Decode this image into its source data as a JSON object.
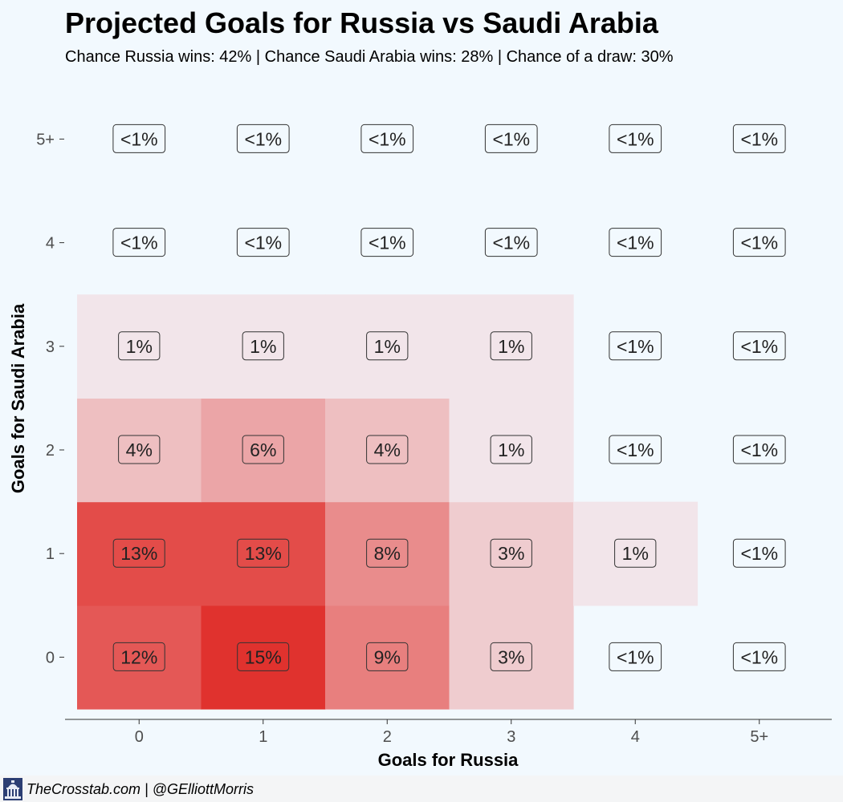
{
  "title": "Projected Goals for Russia vs Saudi Arabia",
  "subtitle": "Chance Russia wins: 42% | Chance Saudi Arabia wins: 28% | Chance of a draw: 30%",
  "footer": {
    "credit": "TheCrosstab.com | @GElliottMorris",
    "logo_icon": "capitol-building-icon"
  },
  "colors": {
    "background": "#f2f9fe",
    "low": "#f3f2f7",
    "high": "#e0322e"
  },
  "chart_data": {
    "type": "heatmap",
    "xlabel": "Goals for Russia",
    "ylabel": "Goals for Saudi Arabia",
    "x_categories": [
      "0",
      "1",
      "2",
      "3",
      "4",
      "5+"
    ],
    "y_categories": [
      "0",
      "1",
      "2",
      "3",
      "4",
      "5+"
    ],
    "grid": false,
    "cells": [
      {
        "x": "0",
        "y": "0",
        "label": "12%",
        "value": 12
      },
      {
        "x": "1",
        "y": "0",
        "label": "15%",
        "value": 15
      },
      {
        "x": "2",
        "y": "0",
        "label": "9%",
        "value": 9
      },
      {
        "x": "3",
        "y": "0",
        "label": "3%",
        "value": 3
      },
      {
        "x": "4",
        "y": "0",
        "label": "<1%",
        "value": 0
      },
      {
        "x": "5+",
        "y": "0",
        "label": "<1%",
        "value": 0
      },
      {
        "x": "0",
        "y": "1",
        "label": "13%",
        "value": 13
      },
      {
        "x": "1",
        "y": "1",
        "label": "13%",
        "value": 13
      },
      {
        "x": "2",
        "y": "1",
        "label": "8%",
        "value": 8
      },
      {
        "x": "3",
        "y": "1",
        "label": "3%",
        "value": 3
      },
      {
        "x": "4",
        "y": "1",
        "label": "1%",
        "value": 1
      },
      {
        "x": "5+",
        "y": "1",
        "label": "<1%",
        "value": 0
      },
      {
        "x": "0",
        "y": "2",
        "label": "4%",
        "value": 4
      },
      {
        "x": "1",
        "y": "2",
        "label": "6%",
        "value": 6
      },
      {
        "x": "2",
        "y": "2",
        "label": "4%",
        "value": 4
      },
      {
        "x": "3",
        "y": "2",
        "label": "1%",
        "value": 1
      },
      {
        "x": "4",
        "y": "2",
        "label": "<1%",
        "value": 0
      },
      {
        "x": "5+",
        "y": "2",
        "label": "<1%",
        "value": 0
      },
      {
        "x": "0",
        "y": "3",
        "label": "1%",
        "value": 1
      },
      {
        "x": "1",
        "y": "3",
        "label": "1%",
        "value": 1
      },
      {
        "x": "2",
        "y": "3",
        "label": "1%",
        "value": 1
      },
      {
        "x": "3",
        "y": "3",
        "label": "1%",
        "value": 1
      },
      {
        "x": "4",
        "y": "3",
        "label": "<1%",
        "value": 0
      },
      {
        "x": "5+",
        "y": "3",
        "label": "<1%",
        "value": 0
      },
      {
        "x": "0",
        "y": "4",
        "label": "<1%",
        "value": 0
      },
      {
        "x": "1",
        "y": "4",
        "label": "<1%",
        "value": 0
      },
      {
        "x": "2",
        "y": "4",
        "label": "<1%",
        "value": 0
      },
      {
        "x": "3",
        "y": "4",
        "label": "<1%",
        "value": 0
      },
      {
        "x": "4",
        "y": "4",
        "label": "<1%",
        "value": 0
      },
      {
        "x": "5+",
        "y": "4",
        "label": "<1%",
        "value": 0
      },
      {
        "x": "0",
        "y": "5+",
        "label": "<1%",
        "value": 0
      },
      {
        "x": "1",
        "y": "5+",
        "label": "<1%",
        "value": 0
      },
      {
        "x": "2",
        "y": "5+",
        "label": "<1%",
        "value": 0
      },
      {
        "x": "3",
        "y": "5+",
        "label": "<1%",
        "value": 0
      },
      {
        "x": "4",
        "y": "5+",
        "label": "<1%",
        "value": 0
      },
      {
        "x": "5+",
        "y": "5+",
        "label": "<1%",
        "value": 0
      }
    ]
  }
}
